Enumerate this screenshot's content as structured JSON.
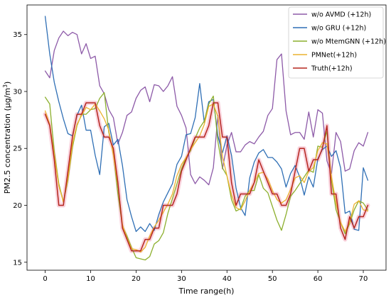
{
  "chart_data": {
    "type": "line",
    "title": "",
    "xlabel": "Time range(h)",
    "ylabel_main": "PM2.5 concentration (μg/m",
    "ylabel_sup": "3",
    "ylabel_close": ")",
    "xlim": [
      -4,
      75
    ],
    "ylim": [
      14.3,
      37.6
    ],
    "xticks": [
      0,
      10,
      20,
      30,
      40,
      50,
      60,
      70
    ],
    "yticks": [
      15,
      20,
      25,
      30,
      35
    ],
    "grid": false,
    "legend_position": "top-right",
    "x": [
      0,
      1,
      2,
      3,
      4,
      5,
      6,
      7,
      8,
      9,
      10,
      11,
      12,
      13,
      14,
      15,
      16,
      17,
      18,
      19,
      20,
      21,
      22,
      23,
      24,
      25,
      26,
      27,
      28,
      29,
      30,
      31,
      32,
      33,
      34,
      35,
      36,
      37,
      38,
      39,
      40,
      41,
      42,
      43,
      44,
      45,
      46,
      47,
      48,
      49,
      50,
      51,
      52,
      53,
      54,
      55,
      56,
      57,
      58,
      59,
      60,
      61,
      62,
      63,
      64,
      65,
      66,
      67,
      68,
      69,
      70,
      71
    ],
    "series": [
      {
        "name": "w/o AVMD (+12h)",
        "color": "#8d5aa8",
        "width": 1.3,
        "values": [
          31.8,
          31.2,
          33.6,
          34.7,
          35.3,
          34.9,
          35.2,
          35.0,
          33.3,
          34.2,
          32.9,
          33.1,
          30.5,
          29.8,
          28.4,
          27.7,
          25.4,
          26.4,
          27.9,
          28.2,
          29.4,
          30.1,
          30.4,
          29.1,
          30.6,
          30.5,
          30.0,
          30.5,
          31.3,
          28.7,
          27.9,
          26.8,
          22.7,
          21.9,
          22.5,
          22.2,
          21.8,
          23.3,
          27.9,
          23.2,
          25.3,
          26.4,
          24.7,
          24.7,
          25.3,
          25.6,
          25.4,
          26.0,
          26.5,
          27.9,
          28.5,
          32.8,
          33.3,
          28.3,
          26.2,
          26.4,
          26.4,
          25.8,
          28.2,
          26.0,
          28.4,
          28.1,
          23.9,
          22.8,
          26.4,
          25.6,
          23.0,
          23.2,
          24.8,
          25.5,
          25.2,
          26.4
        ]
      },
      {
        "name": "w/o GRU (+12h)",
        "color": "#2f6fb5",
        "width": 1.3,
        "values": [
          36.6,
          33.3,
          30.8,
          29.1,
          27.6,
          26.3,
          26.1,
          27.9,
          28.8,
          26.6,
          26.6,
          24.4,
          22.7,
          26.9,
          27.2,
          25.3,
          25.8,
          23.5,
          20.5,
          19.0,
          17.7,
          18.1,
          17.7,
          18.4,
          17.8,
          19.2,
          20.3,
          21.1,
          21.9,
          23.6,
          24.3,
          26.2,
          26.3,
          27.7,
          30.7,
          27.3,
          29.1,
          29.3,
          26.1,
          24.6,
          26.1,
          24.4,
          21.5,
          19.8,
          19.1,
          22.4,
          23.8,
          24.6,
          24.9,
          24.2,
          24.2,
          23.8,
          23.2,
          21.6,
          22.8,
          23.5,
          22.5,
          20.9,
          22.5,
          21.6,
          24.1,
          24.9,
          25.2,
          24.3,
          24.8,
          23.3,
          19.3,
          19.5,
          17.9,
          17.8,
          23.3,
          22.2
        ]
      },
      {
        "name": "w/o MtemGNN (+12h)",
        "color": "#8caf2d",
        "width": 1.3,
        "values": [
          29.5,
          28.9,
          24.7,
          21.9,
          20.3,
          22.2,
          25.1,
          27.0,
          28.0,
          28.0,
          28.4,
          28.5,
          29.4,
          29.9,
          26.4,
          24.6,
          21.0,
          18.2,
          17.3,
          16.3,
          15.4,
          15.3,
          15.2,
          15.5,
          16.6,
          16.9,
          17.6,
          19.3,
          20.6,
          21.9,
          23.2,
          24.2,
          24.8,
          25.9,
          26.8,
          27.4,
          28.9,
          29.6,
          25.6,
          23.3,
          22.6,
          20.5,
          19.5,
          19.7,
          20.8,
          21.3,
          21.3,
          22.7,
          21.5,
          21.1,
          19.9,
          18.7,
          17.8,
          19.2,
          20.8,
          21.3,
          21.9,
          22.5,
          23.1,
          22.9,
          25.2,
          25.1,
          26.5,
          22.2,
          19.6,
          18.5,
          17.5,
          18.4,
          19.6,
          20.4,
          20.2,
          19.6
        ]
      },
      {
        "name": "PMNet(+12h)",
        "color": "#ecb22e",
        "width": 1.3,
        "values": [
          28.3,
          27.1,
          24.4,
          21.7,
          20.3,
          22.4,
          25.4,
          27.1,
          27.9,
          28.6,
          28.4,
          28.9,
          28.3,
          27.6,
          26.6,
          24.4,
          21.8,
          18.3,
          17.1,
          16.2,
          16.1,
          15.9,
          16.3,
          17.3,
          18.1,
          18.7,
          19.4,
          20.1,
          21.0,
          22.6,
          23.6,
          24.2,
          24.9,
          25.5,
          26.1,
          27.1,
          28.7,
          28.9,
          27.8,
          24.3,
          22.6,
          20.9,
          19.8,
          19.6,
          20.4,
          21.3,
          22.0,
          22.8,
          22.9,
          22.3,
          21.3,
          20.5,
          20.2,
          20.5,
          21.4,
          22.4,
          22.6,
          22.0,
          23.0,
          23.3,
          24.8,
          25.5,
          25.4,
          22.5,
          20.2,
          18.5,
          17.7,
          18.5,
          20.1,
          20.4,
          19.6,
          19.5
        ]
      },
      {
        "name": "Truth(+12h)",
        "color": "#b5261f",
        "width": 1.5,
        "values": [
          28.0,
          27.0,
          24.0,
          20.0,
          20.0,
          23.0,
          26.0,
          28.0,
          28.0,
          29.0,
          29.0,
          29.0,
          27.0,
          26.0,
          26.0,
          25.0,
          22.0,
          18.0,
          17.0,
          16.0,
          16.0,
          16.0,
          17.0,
          17.0,
          18.0,
          18.0,
          20.0,
          20.0,
          20.0,
          21.0,
          23.0,
          24.0,
          25.0,
          26.0,
          26.0,
          26.0,
          27.0,
          29.0,
          29.0,
          26.0,
          26.0,
          22.0,
          20.0,
          21.0,
          21.0,
          21.0,
          22.0,
          24.0,
          23.0,
          22.0,
          21.0,
          21.0,
          20.0,
          20.0,
          21.0,
          23.0,
          25.0,
          25.0,
          23.0,
          24.0,
          24.0,
          25.0,
          27.0,
          21.0,
          21.0,
          18.0,
          17.0,
          19.0,
          18.0,
          19.0,
          19.0,
          20.0
        ]
      }
    ]
  }
}
